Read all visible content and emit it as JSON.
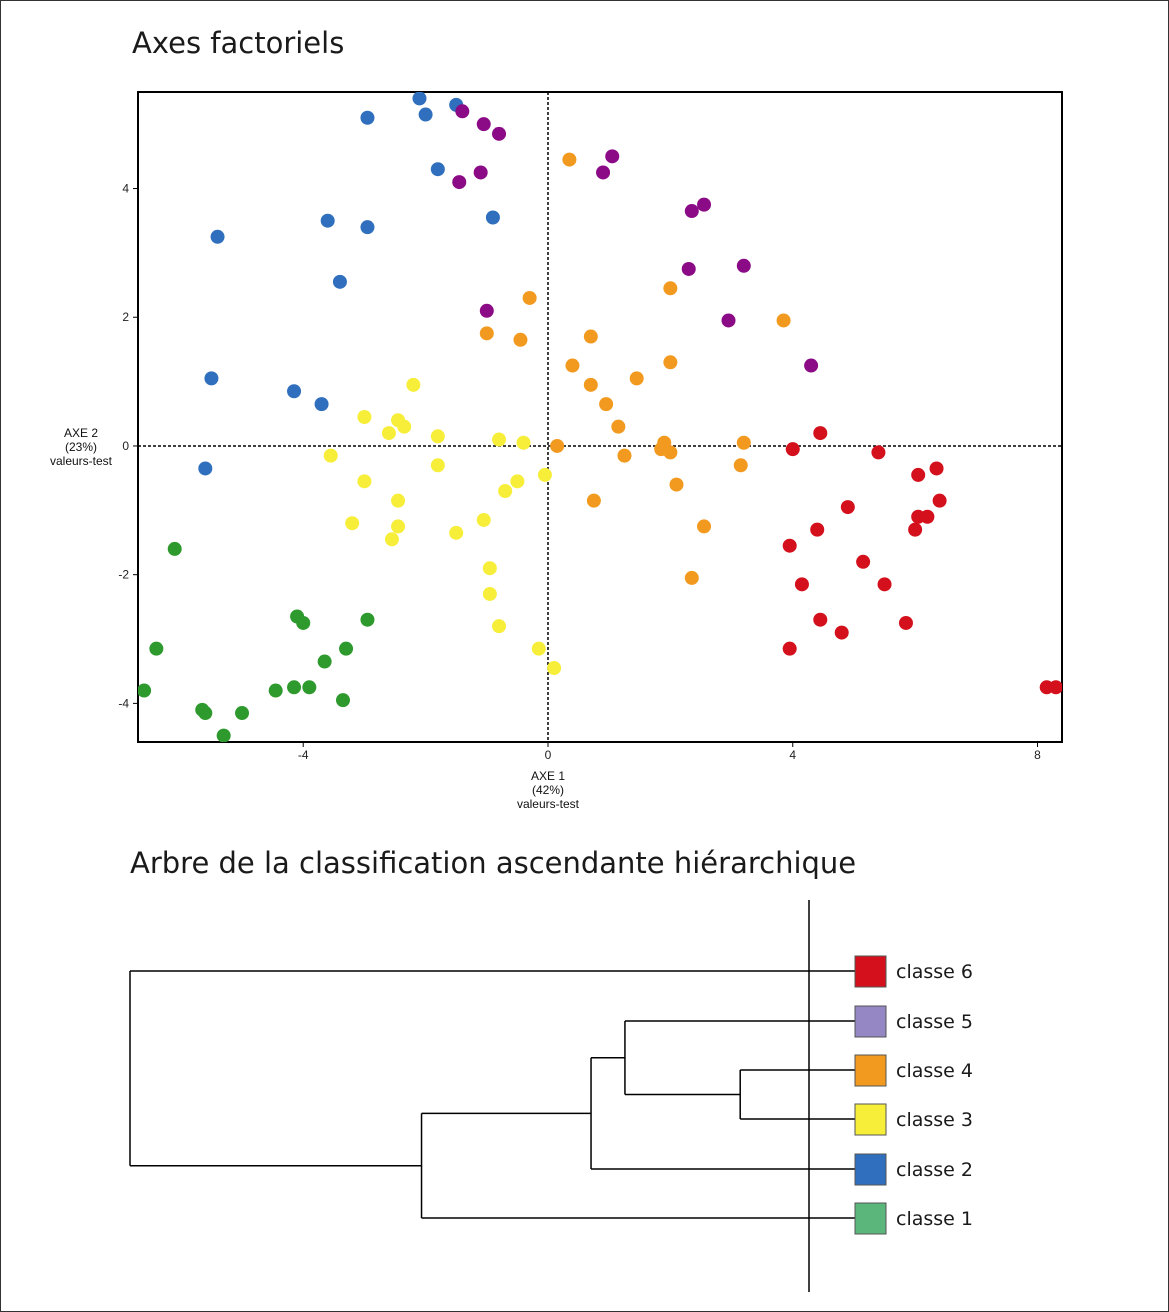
{
  "chart_data": [
    {
      "type": "scatter",
      "title": "Axes factoriels",
      "xlabel": [
        "AXE 1",
        "(42%)",
        "valeurs-test"
      ],
      "ylabel": [
        "AXE 2",
        "(23%)",
        "valeurs-test"
      ],
      "xlim": [
        -6.7,
        8.4
      ],
      "ylim": [
        -4.6,
        5.5
      ],
      "x_ticks": [
        -4,
        0,
        4,
        8
      ],
      "y_ticks": [
        -4,
        -2,
        0,
        2,
        4
      ],
      "reference_lines": {
        "x": 0,
        "y": 0
      },
      "grid": false,
      "series": [
        {
          "color": "#2f6fbd",
          "points": [
            [
              -2.1,
              5.4
            ],
            [
              -2.0,
              5.15
            ],
            [
              -1.5,
              5.3
            ],
            [
              -2.95,
              5.1
            ],
            [
              -1.8,
              4.3
            ],
            [
              -3.6,
              3.5
            ],
            [
              -0.9,
              3.55
            ],
            [
              -2.95,
              3.4
            ],
            [
              -5.4,
              3.25
            ],
            [
              -3.4,
              2.55
            ],
            [
              -5.5,
              1.05
            ],
            [
              -4.15,
              0.85
            ],
            [
              -3.7,
              0.65
            ],
            [
              -5.6,
              -0.35
            ]
          ]
        },
        {
          "color": "#8b0a86",
          "points": [
            [
              -1.4,
              5.2
            ],
            [
              -1.05,
              5.0
            ],
            [
              -0.8,
              4.85
            ],
            [
              1.05,
              4.5
            ],
            [
              0.9,
              4.25
            ],
            [
              -1.1,
              4.25
            ],
            [
              -1.45,
              4.1
            ],
            [
              2.55,
              3.75
            ],
            [
              2.35,
              3.65
            ],
            [
              2.3,
              2.75
            ],
            [
              3.2,
              2.8
            ],
            [
              2.95,
              1.95
            ],
            [
              -1.0,
              2.1
            ],
            [
              4.3,
              1.25
            ]
          ]
        },
        {
          "color": "#f29a1f",
          "points": [
            [
              0.35,
              4.45
            ],
            [
              -0.3,
              2.3
            ],
            [
              2.0,
              2.45
            ],
            [
              3.85,
              1.95
            ],
            [
              -1.0,
              1.75
            ],
            [
              0.7,
              1.7
            ],
            [
              -0.45,
              1.65
            ],
            [
              0.4,
              1.25
            ],
            [
              2.0,
              1.3
            ],
            [
              1.45,
              1.05
            ],
            [
              0.7,
              0.95
            ],
            [
              0.95,
              0.65
            ],
            [
              1.15,
              0.3
            ],
            [
              1.9,
              0.05
            ],
            [
              3.2,
              0.05
            ],
            [
              0.15,
              0.0
            ],
            [
              1.85,
              -0.05
            ],
            [
              2.0,
              -0.1
            ],
            [
              1.25,
              -0.15
            ],
            [
              3.15,
              -0.3
            ],
            [
              2.1,
              -0.6
            ],
            [
              0.75,
              -0.85
            ],
            [
              2.55,
              -1.25
            ],
            [
              2.35,
              -2.05
            ]
          ]
        },
        {
          "color": "#f7ee3a",
          "points": [
            [
              -2.2,
              0.95
            ],
            [
              -3.0,
              0.45
            ],
            [
              -2.45,
              0.4
            ],
            [
              -2.35,
              0.3
            ],
            [
              -2.6,
              0.2
            ],
            [
              -1.8,
              0.15
            ],
            [
              -0.8,
              0.1
            ],
            [
              -0.4,
              0.05
            ],
            [
              -3.55,
              -0.15
            ],
            [
              -1.8,
              -0.3
            ],
            [
              -0.05,
              -0.45
            ],
            [
              -3.0,
              -0.55
            ],
            [
              -0.5,
              -0.55
            ],
            [
              -0.7,
              -0.7
            ],
            [
              -2.45,
              -0.85
            ],
            [
              -1.05,
              -1.15
            ],
            [
              -3.2,
              -1.2
            ],
            [
              -2.45,
              -1.25
            ],
            [
              -1.5,
              -1.35
            ],
            [
              -2.55,
              -1.45
            ],
            [
              -0.95,
              -1.9
            ],
            [
              -0.95,
              -2.3
            ],
            [
              -0.8,
              -2.8
            ],
            [
              -0.15,
              -3.15
            ],
            [
              0.1,
              -3.45
            ]
          ]
        },
        {
          "color": "#d3101c",
          "points": [
            [
              4.45,
              0.2
            ],
            [
              4.0,
              -0.05
            ],
            [
              5.4,
              -0.1
            ],
            [
              6.35,
              -0.35
            ],
            [
              6.05,
              -0.45
            ],
            [
              6.4,
              -0.85
            ],
            [
              4.9,
              -0.95
            ],
            [
              6.2,
              -1.1
            ],
            [
              6.05,
              -1.1
            ],
            [
              6.0,
              -1.3
            ],
            [
              4.4,
              -1.3
            ],
            [
              3.95,
              -1.55
            ],
            [
              5.15,
              -1.8
            ],
            [
              4.15,
              -2.15
            ],
            [
              5.5,
              -2.15
            ],
            [
              4.45,
              -2.7
            ],
            [
              5.85,
              -2.75
            ],
            [
              4.8,
              -2.9
            ],
            [
              3.95,
              -3.15
            ],
            [
              8.15,
              -3.75
            ],
            [
              8.3,
              -3.75
            ]
          ]
        },
        {
          "color": "#2e9a2e",
          "points": [
            [
              -6.1,
              -1.6
            ],
            [
              -6.4,
              -3.15
            ],
            [
              -6.6,
              -3.8
            ],
            [
              -5.65,
              -4.1
            ],
            [
              -5.6,
              -4.15
            ],
            [
              -5.0,
              -4.15
            ],
            [
              -5.3,
              -4.5
            ],
            [
              -4.45,
              -3.8
            ],
            [
              -4.15,
              -3.75
            ],
            [
              -3.9,
              -3.75
            ],
            [
              -3.65,
              -3.35
            ],
            [
              -3.35,
              -3.95
            ],
            [
              -3.3,
              -3.15
            ],
            [
              -4.1,
              -2.65
            ],
            [
              -4.0,
              -2.75
            ],
            [
              -2.95,
              -2.7
            ]
          ]
        }
      ]
    },
    {
      "type": "dendrogram",
      "title": "Arbre de la classification ascendante hiérarchique",
      "leaves": [
        {
          "label": "classe 6",
          "color": "#d3101c"
        },
        {
          "label": "classe 5",
          "color": "#9487c3"
        },
        {
          "label": "classe 4",
          "color": "#f29a1f"
        },
        {
          "label": "classe 3",
          "color": "#f7ee3a"
        },
        {
          "label": "classe 2",
          "color": "#2f6fbd"
        },
        {
          "label": "classe 1",
          "color": "#5ab67a"
        }
      ],
      "merges": [
        {
          "left": 2,
          "right": 3,
          "height": 0.1
        },
        {
          "left": 1,
          "right": "m0",
          "height": 0.27
        },
        {
          "left": 4,
          "right": "m1",
          "height": 0.32
        },
        {
          "left": 5,
          "right": "m2",
          "height": 0.57
        },
        {
          "left": 0,
          "right": "m3",
          "height": 1.0
        }
      ],
      "cut_line": true
    }
  ]
}
